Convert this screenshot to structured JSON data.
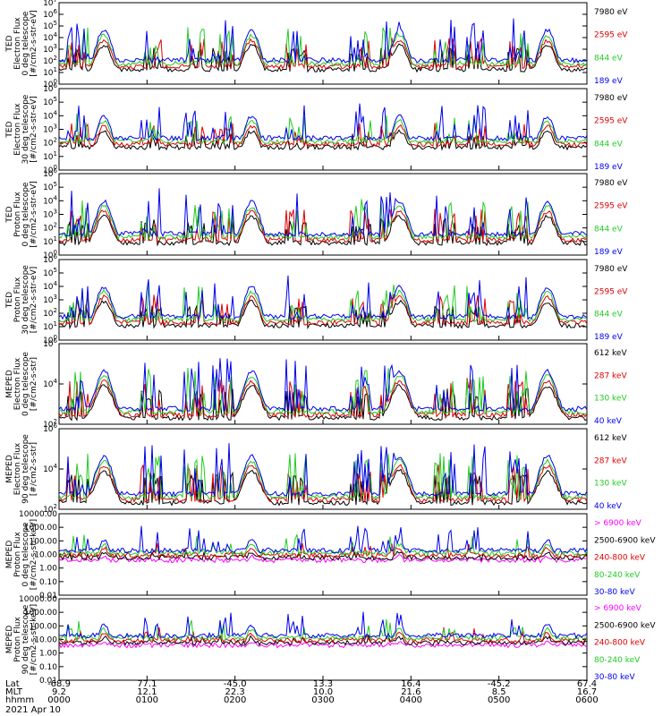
{
  "chart_data": [
    {
      "type": "line",
      "ylabel_lines": [
        "TED",
        "Electron Flux",
        "0 deg telescope",
        "[#/cm2-s-str-eV]"
      ],
      "yscale": "log",
      "ylim": [
        1,
        10000000
      ],
      "yticks": [
        "10^0",
        "10^1",
        "10^2",
        "10^3",
        "10^4",
        "10^5",
        "10^6",
        "10^7"
      ],
      "series": [
        {
          "name": "7980 eV",
          "color": "#000000"
        },
        {
          "name": "2595 eV",
          "color": "#e00000"
        },
        {
          "name": "844 eV",
          "color": "#22cc22"
        },
        {
          "name": "189 eV",
          "color": "#0000ee"
        }
      ]
    },
    {
      "type": "line",
      "ylabel_lines": [
        "TED",
        "Electron Flux",
        "30 deg telescope",
        "[#/cm2-s-str-eV]"
      ],
      "yscale": "log",
      "ylim": [
        1,
        1000000
      ],
      "yticks": [
        "10^0",
        "10^1",
        "10^2",
        "10^3",
        "10^4",
        "10^5",
        "10^6"
      ],
      "series": [
        {
          "name": "7980 eV",
          "color": "#000000"
        },
        {
          "name": "2595 eV",
          "color": "#e00000"
        },
        {
          "name": "844 eV",
          "color": "#22cc22"
        },
        {
          "name": "189 eV",
          "color": "#0000ee"
        }
      ]
    },
    {
      "type": "line",
      "ylabel_lines": [
        "TED",
        "Proton Flux",
        "0 deg telescope",
        "[#/cm2-s-str-eV]"
      ],
      "yscale": "log",
      "ylim": [
        1,
        1000000
      ],
      "yticks": [
        "10^0",
        "10^1",
        "10^2",
        "10^3",
        "10^4",
        "10^5",
        "10^6"
      ],
      "series": [
        {
          "name": "7980 eV",
          "color": "#000000"
        },
        {
          "name": "2595 eV",
          "color": "#e00000"
        },
        {
          "name": "844 eV",
          "color": "#22cc22"
        },
        {
          "name": "189 eV",
          "color": "#0000ee"
        }
      ]
    },
    {
      "type": "line",
      "ylabel_lines": [
        "TED",
        "Proton Flux",
        "30 deg telescope",
        "[#/cm2-s-str-eV]"
      ],
      "yscale": "log",
      "ylim": [
        1,
        1000000
      ],
      "yticks": [
        "10^0",
        "10^1",
        "10^2",
        "10^3",
        "10^4",
        "10^5",
        "10^6"
      ],
      "series": [
        {
          "name": "7980 eV",
          "color": "#000000"
        },
        {
          "name": "2595 eV",
          "color": "#e00000"
        },
        {
          "name": "844 eV",
          "color": "#22cc22"
        },
        {
          "name": "189 eV",
          "color": "#0000ee"
        }
      ]
    },
    {
      "type": "line",
      "ylabel_lines": [
        "MEPED",
        "Electron Flux",
        "0 deg telescope",
        "[#/cm2-s-str]"
      ],
      "yscale": "log",
      "ylim": [
        100,
        10000000
      ],
      "yticks": [
        "10^2",
        "10^4",
        "10^6"
      ],
      "series": [
        {
          "name": "612 keV",
          "color": "#000000"
        },
        {
          "name": "287 keV",
          "color": "#e00000"
        },
        {
          "name": "130 keV",
          "color": "#22cc22"
        },
        {
          "name": "40 keV",
          "color": "#0000ee"
        }
      ]
    },
    {
      "type": "line",
      "ylabel_lines": [
        "MEPED",
        "Electron Flux",
        "90 deg telescope",
        "[#/cm2-s-str]"
      ],
      "yscale": "log",
      "ylim": [
        100,
        1000000
      ],
      "yticks": [
        "10^2",
        "10^4",
        "10^6"
      ],
      "series": [
        {
          "name": "612 keV",
          "color": "#000000"
        },
        {
          "name": "287 keV",
          "color": "#e00000"
        },
        {
          "name": "130 keV",
          "color": "#22cc22"
        },
        {
          "name": "40 keV",
          "color": "#0000ee"
        }
      ]
    },
    {
      "type": "line",
      "ylabel_lines": [
        "MEPED",
        "Proton Flux",
        "0 deg telescope",
        "[#/cm2-s-str-keV]"
      ],
      "yscale": "log",
      "ylim": [
        0.01,
        10000
      ],
      "yticks": [
        "0.01",
        "0.10",
        "1.00",
        "10.00",
        "100.00",
        "1000.00",
        "10000.00"
      ],
      "series": [
        {
          "name": "> 6900 keV",
          "color": "#ff00ff"
        },
        {
          "name": "2500-6900 keV",
          "color": "#000000"
        },
        {
          "name": "240-800 keV",
          "color": "#e00000"
        },
        {
          "name": "80-240 keV",
          "color": "#22cc22"
        },
        {
          "name": "30-80 keV",
          "color": "#0000ee"
        }
      ]
    },
    {
      "type": "line",
      "ylabel_lines": [
        "MEPED",
        "Proton Flux",
        "90 deg telescope",
        "[#/cm2-s-str-keV]"
      ],
      "yscale": "log",
      "ylim": [
        0.01,
        10000
      ],
      "yticks": [
        "0.01",
        "0.10",
        "1.00",
        "10.00",
        "100.00",
        "1000.00",
        "10000.00"
      ],
      "series": [
        {
          "name": "> 6900 keV",
          "color": "#ff00ff"
        },
        {
          "name": "2500-6900 keV",
          "color": "#000000"
        },
        {
          "name": "240-800 keV",
          "color": "#e00000"
        },
        {
          "name": "80-240 keV",
          "color": "#22cc22"
        },
        {
          "name": "30-80 keV",
          "color": "#0000ee"
        }
      ]
    }
  ],
  "x_axis": {
    "row_labels": [
      "Lat",
      "MLT",
      "hhmm"
    ],
    "ticks": [
      {
        "Lat": "-68.9",
        "MLT": "9.2",
        "hhmm": "0000"
      },
      {
        "Lat": "77.1",
        "MLT": "12.1",
        "hhmm": "0100"
      },
      {
        "Lat": "-45.0",
        "MLT": "22.3",
        "hhmm": "0200"
      },
      {
        "Lat": "13.3",
        "MLT": "10.0",
        "hhmm": "0300"
      },
      {
        "Lat": "16.4",
        "MLT": "21.6",
        "hhmm": "0400"
      },
      {
        "Lat": "-45.2",
        "MLT": "8.5",
        "hhmm": "0500"
      },
      {
        "Lat": "67.4",
        "MLT": "16.7",
        "hhmm": "0600"
      }
    ],
    "date": "2021 Apr 10"
  }
}
